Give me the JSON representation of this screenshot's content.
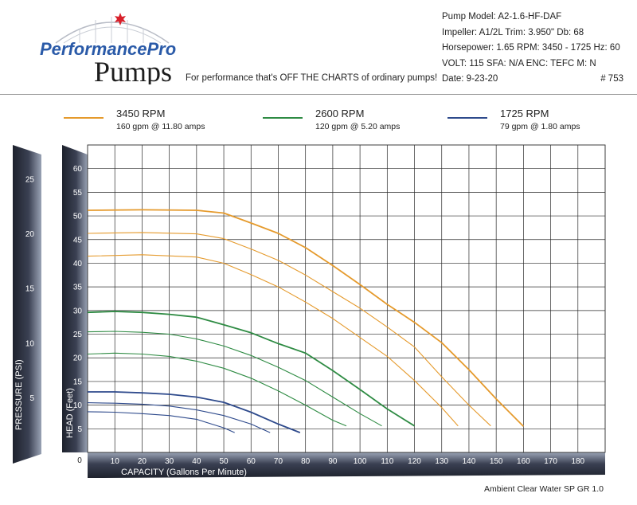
{
  "header": {
    "logo_line1": "PerformancePro",
    "logo_line2": "Pumps",
    "tagline": "For performance that's OFF THE CHARTS of ordinary pumps!",
    "specs": [
      "Pump Model:  A2-1.6-HF-DAF",
      "Impeller:  A1/2L   Trim:  3.950\"   Db:  68",
      "Horsepower:  1.65   RPM:  3450 - 1725  Hz: 60",
      "VOLT:  115    SFA:  N/A    ENC:  TEFC    M: N",
      "Date:  9-23-20"
    ],
    "chart_number": "# 753"
  },
  "colors": {
    "rpm_3450": "#e59a2c",
    "rpm_2600": "#2e8b43",
    "rpm_1725": "#2e4a8c",
    "axis_band_dark": "#2b2f3c",
    "axis_band_light": "#8a93a6"
  },
  "legend": [
    {
      "title": "3450 RPM",
      "subtitle": "160 gpm @ 11.80 amps"
    },
    {
      "title": "2600 RPM",
      "subtitle": "120 gpm @ 5.20 amps"
    },
    {
      "title": "1725 RPM",
      "subtitle": "79 gpm @ 1.80 amps"
    }
  ],
  "footer": "Ambient Clear Water SP GR 1.0",
  "chart_data": {
    "type": "line",
    "xlabel": "CAPACITY (Gallons Per Minute)",
    "ylabel": "HEAD (Feet)",
    "y2label": "PRESSURE (PSI)",
    "xlim": [
      0,
      190
    ],
    "ylim": [
      0,
      65
    ],
    "x_ticks": [
      10,
      20,
      30,
      40,
      50,
      60,
      70,
      80,
      90,
      100,
      110,
      120,
      130,
      140,
      150,
      160,
      170,
      180
    ],
    "y_ticks": [
      5,
      10,
      15,
      20,
      25,
      30,
      35,
      40,
      45,
      50,
      55,
      60
    ],
    "origin_label": "0",
    "psi_ticks": [
      5,
      10,
      15,
      20,
      25
    ],
    "grid": true,
    "series": [
      {
        "name": "3450 RPM",
        "group": "rpm_3450",
        "points": [
          [
            0,
            51.2
          ],
          [
            20,
            51.3
          ],
          [
            40,
            51.2
          ],
          [
            50,
            50.6
          ],
          [
            60,
            48.5
          ],
          [
            70,
            46.3
          ],
          [
            80,
            43.3
          ],
          [
            90,
            39.5
          ],
          [
            100,
            35.5
          ],
          [
            110,
            31.3
          ],
          [
            120,
            27.5
          ],
          [
            130,
            23.2
          ],
          [
            140,
            17.5
          ],
          [
            150,
            11.3
          ],
          [
            160,
            5.5
          ]
        ]
      },
      {
        "name": "",
        "group": "rpm_3450",
        "points": [
          [
            0,
            46.3
          ],
          [
            20,
            46.5
          ],
          [
            40,
            46.2
          ],
          [
            50,
            45.2
          ],
          [
            60,
            43.0
          ],
          [
            70,
            40.6
          ],
          [
            80,
            37.5
          ],
          [
            90,
            34.0
          ],
          [
            100,
            30.5
          ],
          [
            110,
            26.5
          ],
          [
            120,
            22.3
          ],
          [
            130,
            16.0
          ],
          [
            140,
            10.0
          ],
          [
            148,
            5.6
          ]
        ]
      },
      {
        "name": "",
        "group": "rpm_3450",
        "points": [
          [
            0,
            41.5
          ],
          [
            20,
            41.8
          ],
          [
            40,
            41.3
          ],
          [
            50,
            40.0
          ],
          [
            60,
            37.6
          ],
          [
            70,
            35.0
          ],
          [
            80,
            31.8
          ],
          [
            90,
            28.3
          ],
          [
            100,
            24.3
          ],
          [
            110,
            20.3
          ],
          [
            120,
            15.2
          ],
          [
            130,
            9.5
          ],
          [
            136,
            5.6
          ]
        ]
      },
      {
        "name": "2600 RPM",
        "group": "rpm_2600",
        "points": [
          [
            0,
            29.6
          ],
          [
            10,
            29.8
          ],
          [
            20,
            29.6
          ],
          [
            30,
            29.2
          ],
          [
            40,
            28.6
          ],
          [
            50,
            27.0
          ],
          [
            60,
            25.3
          ],
          [
            70,
            23.0
          ],
          [
            80,
            21.0
          ],
          [
            90,
            17.3
          ],
          [
            100,
            13.3
          ],
          [
            110,
            9.2
          ],
          [
            120,
            5.6
          ]
        ]
      },
      {
        "name": "",
        "group": "rpm_2600",
        "points": [
          [
            0,
            25.5
          ],
          [
            10,
            25.6
          ],
          [
            20,
            25.4
          ],
          [
            30,
            25.0
          ],
          [
            40,
            24.0
          ],
          [
            50,
            22.5
          ],
          [
            60,
            20.5
          ],
          [
            70,
            18.0
          ],
          [
            80,
            15.2
          ],
          [
            90,
            11.7
          ],
          [
            100,
            8.2
          ],
          [
            108,
            5.6
          ]
        ]
      },
      {
        "name": "",
        "group": "rpm_2600",
        "points": [
          [
            0,
            20.8
          ],
          [
            10,
            21.0
          ],
          [
            20,
            20.8
          ],
          [
            30,
            20.3
          ],
          [
            40,
            19.3
          ],
          [
            50,
            17.8
          ],
          [
            60,
            15.7
          ],
          [
            70,
            13.0
          ],
          [
            80,
            10.0
          ],
          [
            90,
            6.8
          ],
          [
            95,
            5.6
          ]
        ]
      },
      {
        "name": "1725 RPM",
        "group": "rpm_1725",
        "points": [
          [
            0,
            12.8
          ],
          [
            10,
            12.8
          ],
          [
            20,
            12.6
          ],
          [
            30,
            12.3
          ],
          [
            40,
            11.7
          ],
          [
            50,
            10.6
          ],
          [
            60,
            8.5
          ],
          [
            70,
            6.0
          ],
          [
            78,
            4.2
          ]
        ]
      },
      {
        "name": "",
        "group": "rpm_1725",
        "points": [
          [
            0,
            10.5
          ],
          [
            10,
            10.4
          ],
          [
            20,
            10.2
          ],
          [
            30,
            9.8
          ],
          [
            40,
            9.0
          ],
          [
            50,
            7.8
          ],
          [
            60,
            6.0
          ],
          [
            67,
            4.2
          ]
        ]
      },
      {
        "name": "",
        "group": "rpm_1725",
        "points": [
          [
            0,
            8.6
          ],
          [
            10,
            8.5
          ],
          [
            20,
            8.2
          ],
          [
            30,
            7.8
          ],
          [
            40,
            7.0
          ],
          [
            50,
            5.2
          ],
          [
            54,
            4.2
          ]
        ]
      }
    ]
  }
}
